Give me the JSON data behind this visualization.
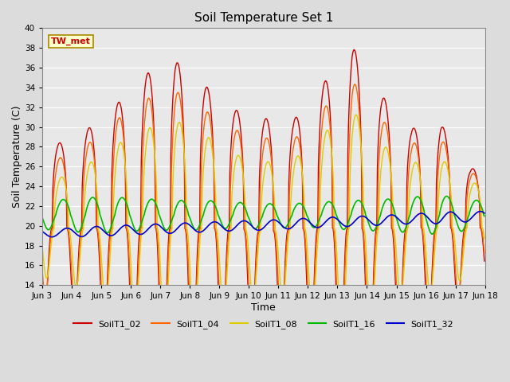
{
  "title": "Soil Temperature Set 1",
  "xlabel": "Time",
  "ylabel": "Soil Temperature (C)",
  "ylim": [
    14,
    40
  ],
  "xlim": [
    0,
    15
  ],
  "background_color": "#dcdcdc",
  "plot_bg_color": "#e8e8e8",
  "annotation_text": "TW_met",
  "annotation_bg": "#ffffcc",
  "annotation_border": "#aa8800",
  "series_order": [
    "SoilT1_02",
    "SoilT1_04",
    "SoilT1_08",
    "SoilT1_16",
    "SoilT1_32"
  ],
  "series": {
    "SoilT1_02": {
      "color": "#cc0000",
      "linewidth": 1.0
    },
    "SoilT1_04": {
      "color": "#ff6600",
      "linewidth": 1.0
    },
    "SoilT1_08": {
      "color": "#ddcc00",
      "linewidth": 1.0
    },
    "SoilT1_16": {
      "color": "#00bb00",
      "linewidth": 1.2
    },
    "SoilT1_32": {
      "color": "#0000cc",
      "linewidth": 1.2
    }
  },
  "num_days": 15,
  "points_per_day": 48,
  "start_day": 3,
  "figsize": [
    6.4,
    4.8
  ],
  "dpi": 100
}
